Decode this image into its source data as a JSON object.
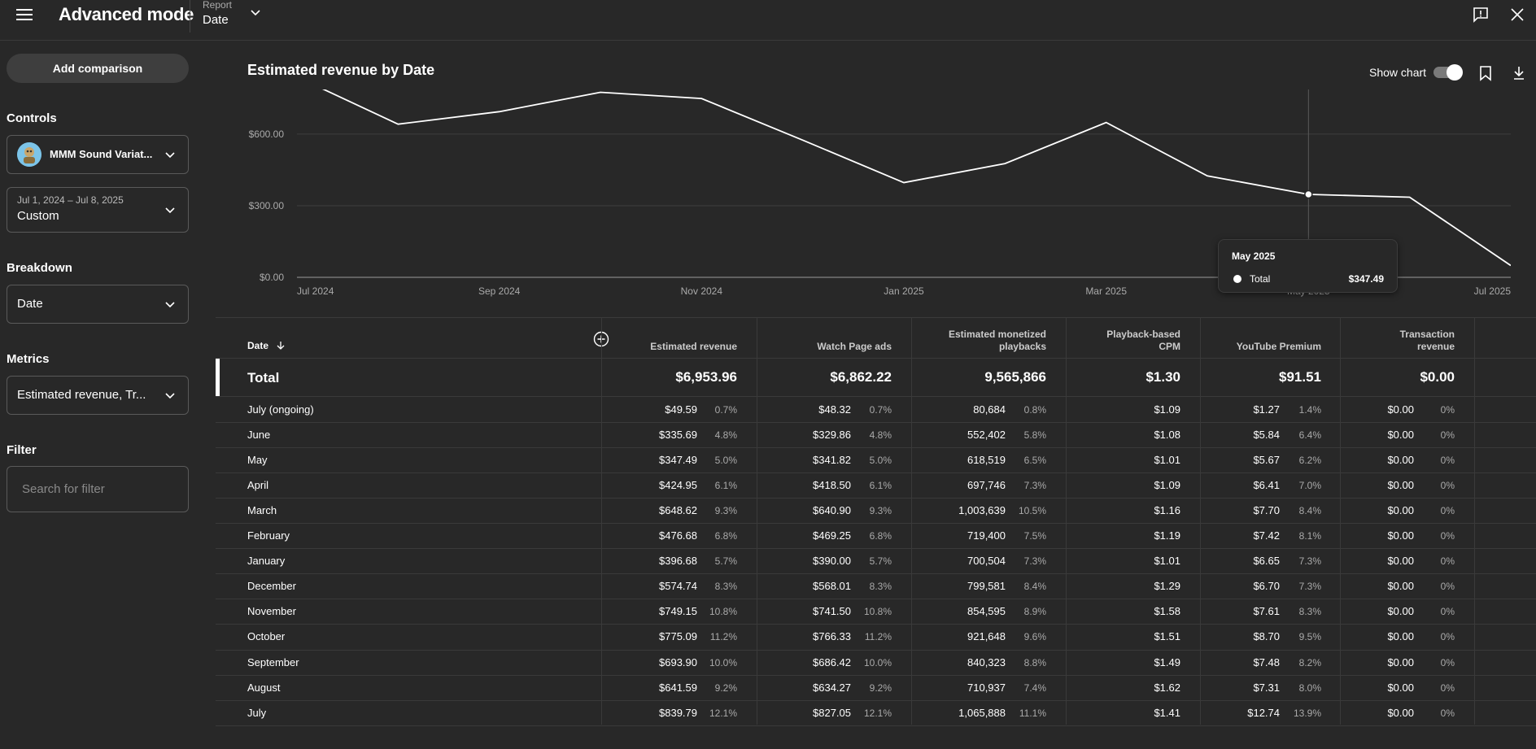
{
  "header": {
    "title": "Advanced mode",
    "report_label": "Report",
    "report_value": "Date"
  },
  "sidebar": {
    "add_comparison": "Add comparison",
    "controls_label": "Controls",
    "channel_name": "MMM Sound Variat...",
    "date_range": "Jul 1, 2024 – Jul 8, 2025",
    "date_preset": "Custom",
    "breakdown_label": "Breakdown",
    "breakdown_value": "Date",
    "metrics_label": "Metrics",
    "metrics_value": "Estimated revenue, Tr...",
    "filter_label": "Filter",
    "filter_placeholder": "Search for filter"
  },
  "chart_toolbar": {
    "show_chart_label": "Show chart",
    "show_chart_on": true
  },
  "tooltip": {
    "title": "May 2025",
    "series": "Total",
    "value": "$347.49"
  },
  "chart_data": {
    "type": "line",
    "title": "Estimated revenue by Date",
    "x": [
      "Jul 2024",
      "Aug 2024",
      "Sep 2024",
      "Oct 2024",
      "Nov 2024",
      "Dec 2024",
      "Jan 2025",
      "Feb 2025",
      "Mar 2025",
      "Apr 2025",
      "May 2025",
      "Jun 2025",
      "Jul 2025"
    ],
    "series": [
      {
        "name": "Total",
        "values": [
          839.79,
          641.59,
          693.9,
          775.09,
          749.15,
          574.74,
          396.68,
          476.68,
          648.62,
          424.95,
          347.49,
          335.69,
          49.59
        ]
      }
    ],
    "x_tick_labels": [
      "Jul 2024",
      "Sep 2024",
      "Nov 2024",
      "Jan 2025",
      "Mar 2025",
      "May 2025",
      "Jul 2025"
    ],
    "y_tick_labels": [
      "$0.00",
      "$300.00",
      "$600.00"
    ],
    "y_ticks": [
      0,
      300,
      600
    ],
    "ylim": [
      0,
      787
    ],
    "grid": true,
    "highlight": "May 2025",
    "line_color": "#ffffff"
  },
  "table": {
    "date_header": "Date",
    "headers": [
      [
        "Estimated revenue"
      ],
      [
        "Watch Page ads"
      ],
      [
        "Estimated monetized",
        "playbacks"
      ],
      [
        "Playback-based",
        "CPM"
      ],
      [
        "YouTube Premium"
      ],
      [
        "Transaction",
        "revenue"
      ]
    ],
    "total_label": "Total",
    "totals": [
      "$6,953.96",
      "$6,862.22",
      "9,565,866",
      "$1.30",
      "$91.51",
      "$0.00"
    ],
    "rows": [
      {
        "label": "July (ongoing)",
        "cells": [
          [
            "$49.59",
            "0.7%"
          ],
          [
            "$48.32",
            "0.7%"
          ],
          [
            "80,684",
            "0.8%"
          ],
          [
            "$1.09",
            ""
          ],
          [
            "$1.27",
            "1.4%"
          ],
          [
            "$0.00",
            "0%"
          ]
        ]
      },
      {
        "label": "June",
        "cells": [
          [
            "$335.69",
            "4.8%"
          ],
          [
            "$329.86",
            "4.8%"
          ],
          [
            "552,402",
            "5.8%"
          ],
          [
            "$1.08",
            ""
          ],
          [
            "$5.84",
            "6.4%"
          ],
          [
            "$0.00",
            "0%"
          ]
        ]
      },
      {
        "label": "May",
        "cells": [
          [
            "$347.49",
            "5.0%"
          ],
          [
            "$341.82",
            "5.0%"
          ],
          [
            "618,519",
            "6.5%"
          ],
          [
            "$1.01",
            ""
          ],
          [
            "$5.67",
            "6.2%"
          ],
          [
            "$0.00",
            "0%"
          ]
        ]
      },
      {
        "label": "April",
        "cells": [
          [
            "$424.95",
            "6.1%"
          ],
          [
            "$418.50",
            "6.1%"
          ],
          [
            "697,746",
            "7.3%"
          ],
          [
            "$1.09",
            ""
          ],
          [
            "$6.41",
            "7.0%"
          ],
          [
            "$0.00",
            "0%"
          ]
        ]
      },
      {
        "label": "March",
        "cells": [
          [
            "$648.62",
            "9.3%"
          ],
          [
            "$640.90",
            "9.3%"
          ],
          [
            "1,003,639",
            "10.5%"
          ],
          [
            "$1.16",
            ""
          ],
          [
            "$7.70",
            "8.4%"
          ],
          [
            "$0.00",
            "0%"
          ]
        ]
      },
      {
        "label": "February",
        "cells": [
          [
            "$476.68",
            "6.8%"
          ],
          [
            "$469.25",
            "6.8%"
          ],
          [
            "719,400",
            "7.5%"
          ],
          [
            "$1.19",
            ""
          ],
          [
            "$7.42",
            "8.1%"
          ],
          [
            "$0.00",
            "0%"
          ]
        ]
      },
      {
        "label": "January",
        "cells": [
          [
            "$396.68",
            "5.7%"
          ],
          [
            "$390.00",
            "5.7%"
          ],
          [
            "700,504",
            "7.3%"
          ],
          [
            "$1.01",
            ""
          ],
          [
            "$6.65",
            "7.3%"
          ],
          [
            "$0.00",
            "0%"
          ]
        ]
      },
      {
        "label": "December",
        "cells": [
          [
            "$574.74",
            "8.3%"
          ],
          [
            "$568.01",
            "8.3%"
          ],
          [
            "799,581",
            "8.4%"
          ],
          [
            "$1.29",
            ""
          ],
          [
            "$6.70",
            "7.3%"
          ],
          [
            "$0.00",
            "0%"
          ]
        ]
      },
      {
        "label": "November",
        "cells": [
          [
            "$749.15",
            "10.8%"
          ],
          [
            "$741.50",
            "10.8%"
          ],
          [
            "854,595",
            "8.9%"
          ],
          [
            "$1.58",
            ""
          ],
          [
            "$7.61",
            "8.3%"
          ],
          [
            "$0.00",
            "0%"
          ]
        ]
      },
      {
        "label": "October",
        "cells": [
          [
            "$775.09",
            "11.2%"
          ],
          [
            "$766.33",
            "11.2%"
          ],
          [
            "921,648",
            "9.6%"
          ],
          [
            "$1.51",
            ""
          ],
          [
            "$8.70",
            "9.5%"
          ],
          [
            "$0.00",
            "0%"
          ]
        ]
      },
      {
        "label": "September",
        "cells": [
          [
            "$693.90",
            "10.0%"
          ],
          [
            "$686.42",
            "10.0%"
          ],
          [
            "840,323",
            "8.8%"
          ],
          [
            "$1.49",
            ""
          ],
          [
            "$7.48",
            "8.2%"
          ],
          [
            "$0.00",
            "0%"
          ]
        ]
      },
      {
        "label": "August",
        "cells": [
          [
            "$641.59",
            "9.2%"
          ],
          [
            "$634.27",
            "9.2%"
          ],
          [
            "710,937",
            "7.4%"
          ],
          [
            "$1.62",
            ""
          ],
          [
            "$7.31",
            "8.0%"
          ],
          [
            "$0.00",
            "0%"
          ]
        ]
      },
      {
        "label": "July",
        "cells": [
          [
            "$839.79",
            "12.1%"
          ],
          [
            "$827.05",
            "12.1%"
          ],
          [
            "1,065,888",
            "11.1%"
          ],
          [
            "$1.41",
            ""
          ],
          [
            "$12.74",
            "13.9%"
          ],
          [
            "$0.00",
            "0%"
          ]
        ]
      }
    ]
  }
}
